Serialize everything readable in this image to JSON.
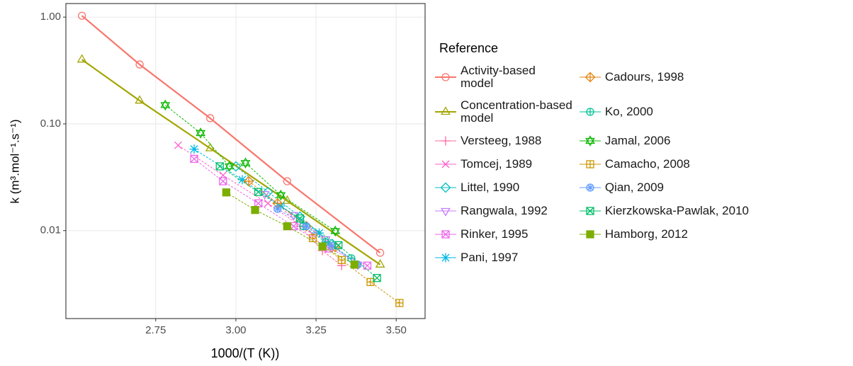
{
  "chart_data": {
    "type": "scatter",
    "x_label": "1000/(T (K))",
    "y_label": "k (m³.mol⁻¹.s⁻¹)",
    "legend_title": "Reference",
    "log_y": true,
    "grid": true,
    "legend_position": "right",
    "xlim": [
      2.47,
      3.59
    ],
    "ylim": [
      0.0015,
      1.34
    ],
    "xticks": [
      2.75,
      {
        "value": 3,
        "label": "3.00"
      },
      3.25,
      {
        "value": 3.5,
        "label": "3.50"
      }
    ],
    "yticks": [
      {
        "value": 0.01,
        "label": "0.01"
      },
      {
        "value": 0.1,
        "label": "0.10"
      },
      {
        "value": 1,
        "label": "1.00"
      }
    ],
    "series": [
      {
        "name": "Activity-based\nmodel",
        "color": "#F8766D",
        "shape": "circle",
        "line": "solid",
        "x": [
          2.52,
          2.7,
          2.92,
          3.16,
          3.45
        ],
        "values": [
          1.03,
          0.36,
          0.113,
          0.029,
          0.0062
        ]
      },
      {
        "name": "Concentration-based\nmodel",
        "color": "#A3A500",
        "shape": "triangle",
        "line": "solid",
        "x": [
          2.52,
          2.7,
          2.92,
          3.16,
          3.45
        ],
        "values": [
          0.4,
          0.165,
          0.059,
          0.019,
          0.0048
        ]
      },
      {
        "name": "Versteeg, 1988",
        "color": "#FF68A1",
        "shape": "plus",
        "line": "dashed",
        "x": [
          3.13,
          3.2,
          3.27,
          3.33
        ],
        "values": [
          0.018,
          0.011,
          0.0065,
          0.0047
        ]
      },
      {
        "name": "Tomcej, 1989",
        "color": "#FF61CC",
        "shape": "cross",
        "line": "dashed",
        "x": [
          2.82,
          2.96,
          3.1,
          3.24
        ],
        "values": [
          0.063,
          0.033,
          0.018,
          0.0092
        ]
      },
      {
        "name": "Littel, 1990",
        "color": "#00BFC4",
        "shape": "diamond",
        "line": "dashed",
        "x": [
          3.0,
          3.1,
          3.2,
          3.3
        ],
        "values": [
          0.04,
          0.023,
          0.0135,
          0.0075
        ]
      },
      {
        "name": "Rangwala, 1992",
        "color": "#C77CFF",
        "shape": "triangle-down",
        "line": "dashed",
        "x": [
          3.09,
          3.18,
          3.28,
          3.38
        ],
        "values": [
          0.022,
          0.014,
          0.0083,
          0.0048
        ]
      },
      {
        "name": "Rinker, 1995",
        "color": "#ED68ED",
        "shape": "square-x",
        "line": "dashed",
        "x": [
          2.87,
          2.96,
          3.07,
          3.18,
          3.29,
          3.41
        ],
        "values": [
          0.047,
          0.029,
          0.018,
          0.011,
          0.0068,
          0.0047
        ]
      },
      {
        "name": "Pani, 1997",
        "color": "#00B8E7",
        "shape": "asterisk",
        "line": "dashed",
        "x": [
          2.87,
          3.02,
          3.14,
          3.26
        ],
        "values": [
          0.058,
          0.03,
          0.017,
          0.0095
        ]
      },
      {
        "name": "Cadours, 1998",
        "color": "#E68613",
        "shape": "diamond-plus",
        "line": "dashed",
        "x": [
          3.04,
          3.13,
          3.22,
          3.31
        ],
        "values": [
          0.029,
          0.018,
          0.011,
          0.007
        ]
      },
      {
        "name": "Ko, 2000",
        "color": "#00C19A",
        "shape": "circle-plus",
        "line": "dashed",
        "x": [
          3.21,
          3.28,
          3.36
        ],
        "values": [
          0.011,
          0.0078,
          0.0055
        ]
      },
      {
        "name": "Jamal, 2006",
        "color": "#0CB702",
        "shape": "star",
        "line": "dashed",
        "x": [
          2.78,
          2.89,
          2.98,
          3.03,
          3.14,
          3.31
        ],
        "values": [
          0.15,
          0.082,
          0.04,
          0.043,
          0.0215,
          0.0099
        ]
      },
      {
        "name": "Camacho, 2008",
        "color": "#CD9600",
        "shape": "square-plus",
        "line": "dashed",
        "x": [
          3.24,
          3.33,
          3.42,
          3.51
        ],
        "values": [
          0.0085,
          0.0053,
          0.0033,
          0.0021
        ]
      },
      {
        "name": "Qian, 2009",
        "color": "#619CFF",
        "shape": "circle-asterisk",
        "line": "dashed",
        "x": [
          3.13,
          3.22,
          3.3,
          3.38
        ],
        "values": [
          0.016,
          0.011,
          0.0072,
          0.0048
        ]
      },
      {
        "name": "Kierzkowska-Pawlak, 2010",
        "color": "#00BE67",
        "shape": "square-x",
        "line": "dashed",
        "x": [
          2.95,
          3.07,
          3.2,
          3.32,
          3.44
        ],
        "values": [
          0.04,
          0.023,
          0.013,
          0.0073,
          0.0036
        ]
      },
      {
        "name": "Hamborg, 2012",
        "color": "#7CAE00",
        "shape": "square-filled",
        "line": "dashed",
        "x": [
          2.97,
          3.06,
          3.16,
          3.27,
          3.37
        ],
        "values": [
          0.0228,
          0.0156,
          0.011,
          0.0071,
          0.0048
        ]
      }
    ]
  }
}
